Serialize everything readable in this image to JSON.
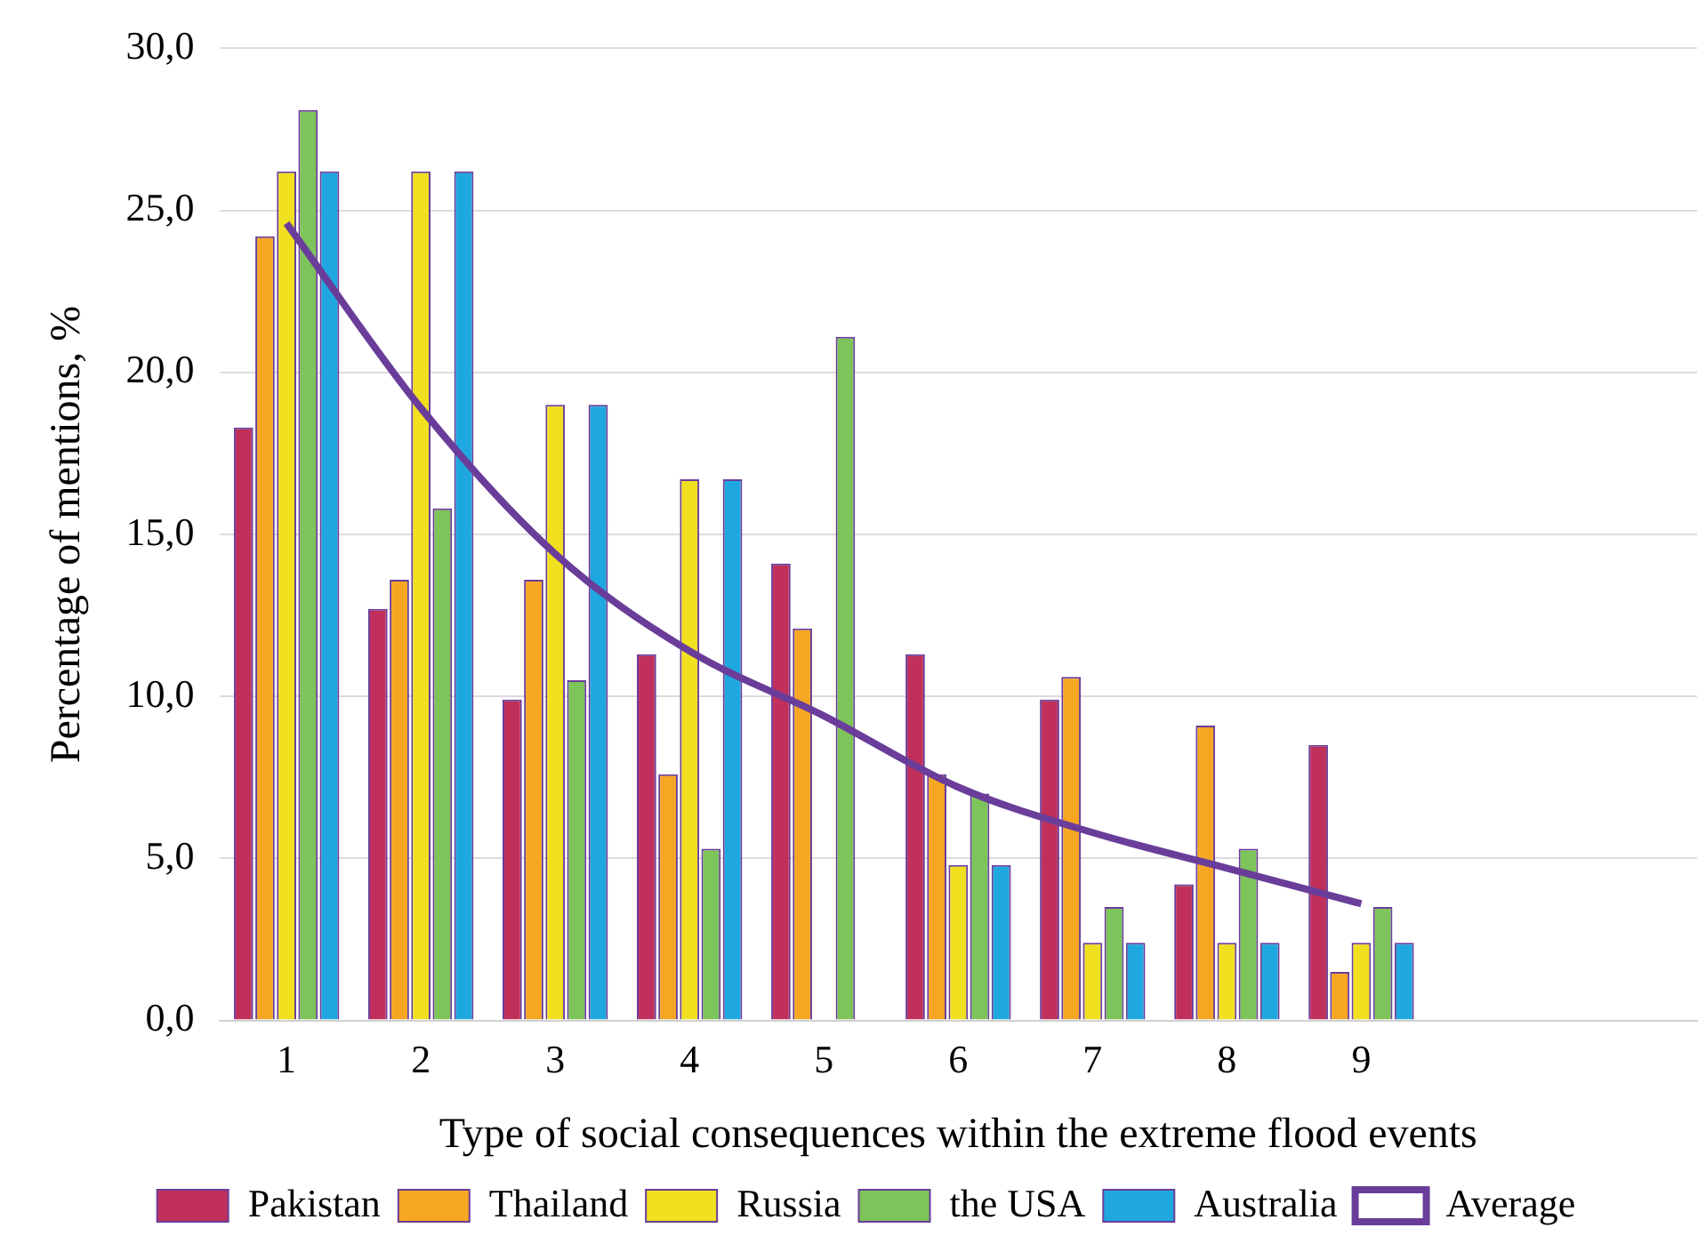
{
  "chart_data": {
    "type": "bar",
    "xlabel": "Type of social consequences within the extreme flood events",
    "ylabel": "Percentage of mentions, %",
    "categories": [
      "1",
      "2",
      "3",
      "4",
      "5",
      "6",
      "7",
      "8",
      "9",
      null,
      null
    ],
    "ylim": [
      0,
      30
    ],
    "yticks": [
      {
        "value": 0,
        "label": "0,0"
      },
      {
        "value": 5,
        "label": "5,0"
      },
      {
        "value": 10,
        "label": "10,0"
      },
      {
        "value": 15,
        "label": "15,0"
      },
      {
        "value": 20,
        "label": "20,0"
      },
      {
        "value": 25,
        "label": "25,0"
      },
      {
        "value": 30,
        "label": "30,0"
      }
    ],
    "grid": "y",
    "legend": "bottom",
    "series": [
      {
        "name": "Pakistan",
        "color": "#c0305a",
        "values": [
          18.3,
          12.7,
          9.9,
          11.3,
          14.1,
          11.3,
          9.9,
          4.2,
          8.5,
          null,
          null
        ]
      },
      {
        "name": "Thailand",
        "color": "#f5a623",
        "values": [
          24.2,
          13.6,
          13.6,
          7.6,
          12.1,
          7.6,
          10.6,
          9.1,
          1.5,
          null,
          null
        ]
      },
      {
        "name": "Russia",
        "color": "#f0e020",
        "values": [
          26.2,
          26.2,
          19.0,
          16.7,
          null,
          4.8,
          2.4,
          2.4,
          2.4,
          null,
          null
        ]
      },
      {
        "name": "the USA",
        "color": "#7dc45a",
        "values": [
          28.1,
          15.8,
          10.5,
          5.3,
          21.1,
          7.0,
          3.5,
          5.3,
          3.5,
          null,
          null
        ]
      },
      {
        "name": "Australia",
        "color": "#1fa8e0",
        "values": [
          26.2,
          26.2,
          19.0,
          16.7,
          null,
          4.8,
          2.4,
          2.4,
          2.4,
          null,
          null
        ]
      },
      {
        "name": "Average",
        "type": "line",
        "color": "#6a3d9a",
        "marker": "none",
        "values": [
          24.6,
          18.9,
          14.4,
          11.4,
          9.4,
          7.2,
          5.8,
          4.7,
          3.6,
          null,
          null
        ]
      }
    ]
  }
}
